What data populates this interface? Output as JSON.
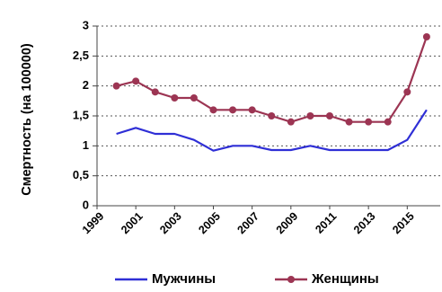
{
  "chart_data": {
    "type": "line",
    "title": "",
    "xlabel": "",
    "ylabel": "Смертность (на 100000)",
    "x": [
      2000,
      2001,
      2002,
      2003,
      2004,
      2005,
      2006,
      2007,
      2008,
      2009,
      2010,
      2011,
      2012,
      2013,
      2014,
      2015,
      2016
    ],
    "x_tick_labels": [
      "1999",
      "2001",
      "2003",
      "2005",
      "2007",
      "2009",
      "2011",
      "2013",
      "2015"
    ],
    "y_tick_labels": [
      "0",
      "0,5",
      "1",
      "1,5",
      "2",
      "2,5",
      "3"
    ],
    "ylim": [
      0,
      3
    ],
    "grid": "horizontal dotted",
    "legend_position": "bottom",
    "series": [
      {
        "name": "Мужчины",
        "color": "#2f2fd6",
        "marker": "none",
        "values": [
          1.2,
          1.3,
          1.2,
          1.2,
          1.1,
          0.92,
          1.0,
          1.0,
          0.93,
          0.93,
          1.0,
          0.93,
          0.93,
          0.93,
          0.93,
          1.1,
          1.6
        ]
      },
      {
        "name": "Женщины",
        "color": "#9c3553",
        "marker": "circle",
        "values": [
          2.0,
          2.08,
          1.9,
          1.8,
          1.8,
          1.6,
          1.6,
          1.6,
          1.5,
          1.4,
          1.5,
          1.5,
          1.4,
          1.4,
          1.4,
          1.9,
          2.82
        ]
      }
    ]
  }
}
